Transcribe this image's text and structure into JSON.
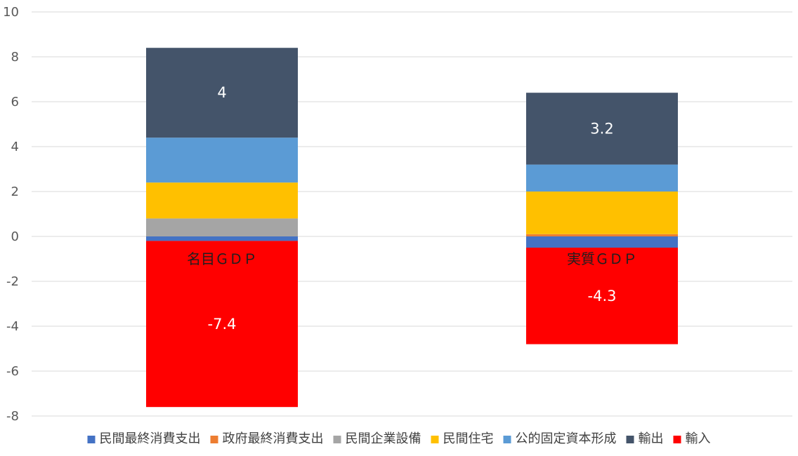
{
  "chart_data": {
    "type": "bar",
    "stacked": true,
    "categories": [
      "名目ＧＤＰ",
      "実質ＧＤＰ"
    ],
    "series": [
      {
        "name": "民間最終消費支出",
        "color": "#4472c4",
        "values": [
          -0.2,
          -0.5
        ]
      },
      {
        "name": "政府最終消費支出",
        "color": "#ed7d31",
        "values": [
          0,
          0.1
        ]
      },
      {
        "name": "民間企業設備",
        "color": "#a5a5a5",
        "values": [
          0.8,
          0
        ]
      },
      {
        "name": "民間住宅",
        "color": "#ffc000",
        "values": [
          1.6,
          1.9
        ]
      },
      {
        "name": "公的固定資本形成",
        "color": "#5b9bd5",
        "values": [
          2.0,
          1.2
        ]
      },
      {
        "name": "輸出",
        "color": "#44546a",
        "values": [
          4.0,
          3.2
        ]
      },
      {
        "name": "輸入",
        "color": "#ff0000",
        "values": [
          -7.4,
          -4.3
        ]
      }
    ],
    "data_labels": [
      {
        "series": "輸出",
        "category": "名目ＧＤＰ",
        "text": "4"
      },
      {
        "series": "輸出",
        "category": "実質ＧＤＰ",
        "text": "3.2"
      },
      {
        "series": "輸入",
        "category": "名目ＧＤＰ",
        "text": "-7.4"
      },
      {
        "series": "輸入",
        "category": "実質ＧＤＰ",
        "text": "-4.3"
      }
    ],
    "ylim": [
      -8,
      10
    ],
    "yticks": [
      "10",
      "8",
      "6",
      "4",
      "2",
      "0",
      "-2",
      "-4",
      "-6",
      "-8"
    ],
    "grid": true,
    "legend_position": "bottom",
    "title": "",
    "xlabel": "",
    "ylabel": ""
  }
}
